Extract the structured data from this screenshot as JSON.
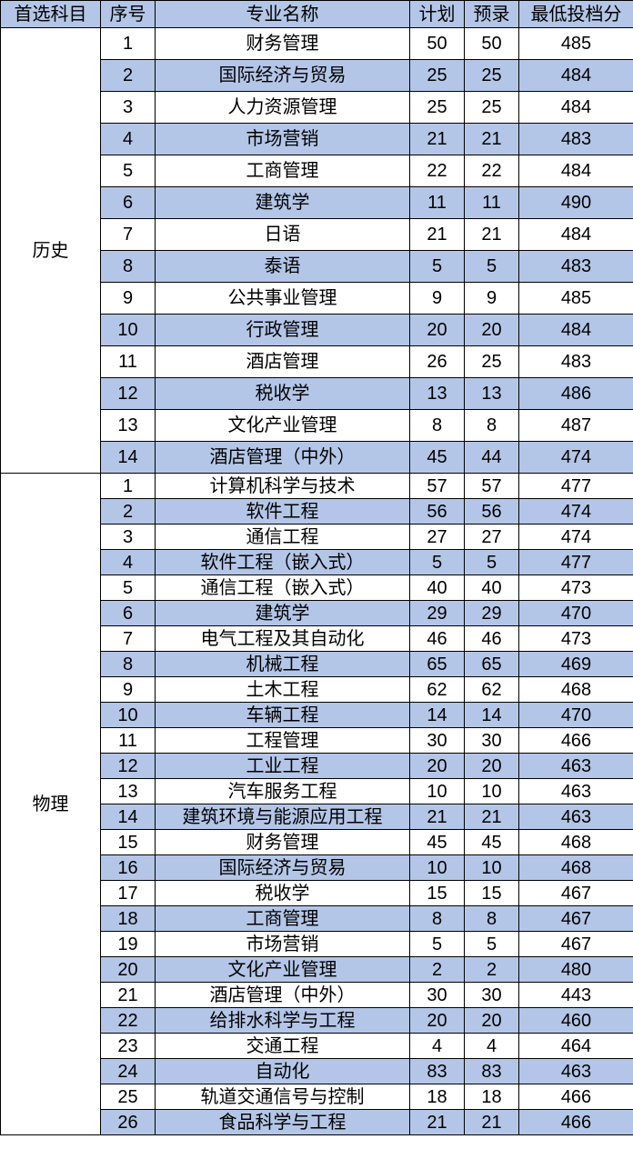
{
  "colors": {
    "header_bg": "#b4c6e7",
    "stripe_bg": "#b4c6e7",
    "row_bg": "#ffffff",
    "border": "#000000",
    "text": "#000000"
  },
  "columns": [
    "首选科目",
    "序号",
    "专业名称",
    "计划",
    "预录",
    "最低投档分"
  ],
  "groups": [
    {
      "subject": "历史",
      "row_class": "h-tall",
      "rows": [
        {
          "seq": "1",
          "major": "财务管理",
          "plan": "50",
          "pre": "50",
          "min": "485"
        },
        {
          "seq": "2",
          "major": "国际经济与贸易",
          "plan": "25",
          "pre": "25",
          "min": "484"
        },
        {
          "seq": "3",
          "major": "人力资源管理",
          "plan": "25",
          "pre": "25",
          "min": "484"
        },
        {
          "seq": "4",
          "major": "市场营销",
          "plan": "21",
          "pre": "21",
          "min": "483"
        },
        {
          "seq": "5",
          "major": "工商管理",
          "plan": "22",
          "pre": "22",
          "min": "484"
        },
        {
          "seq": "6",
          "major": "建筑学",
          "plan": "11",
          "pre": "11",
          "min": "490"
        },
        {
          "seq": "7",
          "major": "日语",
          "plan": "21",
          "pre": "21",
          "min": "484"
        },
        {
          "seq": "8",
          "major": "泰语",
          "plan": "5",
          "pre": "5",
          "min": "483"
        },
        {
          "seq": "9",
          "major": "公共事业管理",
          "plan": "9",
          "pre": "9",
          "min": "485"
        },
        {
          "seq": "10",
          "major": "行政管理",
          "plan": "20",
          "pre": "20",
          "min": "484"
        },
        {
          "seq": "11",
          "major": "酒店管理",
          "plan": "26",
          "pre": "25",
          "min": "483"
        },
        {
          "seq": "12",
          "major": "税收学",
          "plan": "13",
          "pre": "13",
          "min": "486"
        },
        {
          "seq": "13",
          "major": "文化产业管理",
          "plan": "8",
          "pre": "8",
          "min": "487"
        },
        {
          "seq": "14",
          "major": "酒店管理（中外）",
          "plan": "45",
          "pre": "44",
          "min": "474"
        }
      ]
    },
    {
      "subject": "物理",
      "row_class": "h-short",
      "rows": [
        {
          "seq": "1",
          "major": "计算机科学与技术",
          "plan": "57",
          "pre": "57",
          "min": "477"
        },
        {
          "seq": "2",
          "major": "软件工程",
          "plan": "56",
          "pre": "56",
          "min": "474"
        },
        {
          "seq": "3",
          "major": "通信工程",
          "plan": "27",
          "pre": "27",
          "min": "474"
        },
        {
          "seq": "4",
          "major": "软件工程（嵌入式）",
          "plan": "5",
          "pre": "5",
          "min": "477"
        },
        {
          "seq": "5",
          "major": "通信工程（嵌入式）",
          "plan": "40",
          "pre": "40",
          "min": "473"
        },
        {
          "seq": "6",
          "major": "建筑学",
          "plan": "29",
          "pre": "29",
          "min": "470"
        },
        {
          "seq": "7",
          "major": "电气工程及其自动化",
          "plan": "46",
          "pre": "46",
          "min": "473"
        },
        {
          "seq": "8",
          "major": "机械工程",
          "plan": "65",
          "pre": "65",
          "min": "469"
        },
        {
          "seq": "9",
          "major": "土木工程",
          "plan": "62",
          "pre": "62",
          "min": "468"
        },
        {
          "seq": "10",
          "major": "车辆工程",
          "plan": "14",
          "pre": "14",
          "min": "470"
        },
        {
          "seq": "11",
          "major": "工程管理",
          "plan": "30",
          "pre": "30",
          "min": "466"
        },
        {
          "seq": "12",
          "major": "工业工程",
          "plan": "20",
          "pre": "20",
          "min": "463"
        },
        {
          "seq": "13",
          "major": "汽车服务工程",
          "plan": "10",
          "pre": "10",
          "min": "463"
        },
        {
          "seq": "14",
          "major": "建筑环境与能源应用工程",
          "plan": "21",
          "pre": "21",
          "min": "463"
        },
        {
          "seq": "15",
          "major": "财务管理",
          "plan": "45",
          "pre": "45",
          "min": "468"
        },
        {
          "seq": "16",
          "major": "国际经济与贸易",
          "plan": "10",
          "pre": "10",
          "min": "468"
        },
        {
          "seq": "17",
          "major": "税收学",
          "plan": "15",
          "pre": "15",
          "min": "467"
        },
        {
          "seq": "18",
          "major": "工商管理",
          "plan": "8",
          "pre": "8",
          "min": "467"
        },
        {
          "seq": "19",
          "major": "市场营销",
          "plan": "5",
          "pre": "5",
          "min": "467"
        },
        {
          "seq": "20",
          "major": "文化产业管理",
          "plan": "2",
          "pre": "2",
          "min": "480"
        },
        {
          "seq": "21",
          "major": "酒店管理（中外）",
          "plan": "30",
          "pre": "30",
          "min": "443"
        },
        {
          "seq": "22",
          "major": "给排水科学与工程",
          "plan": "20",
          "pre": "20",
          "min": "460"
        },
        {
          "seq": "23",
          "major": "交通工程",
          "plan": "4",
          "pre": "4",
          "min": "464"
        },
        {
          "seq": "24",
          "major": "自动化",
          "plan": "83",
          "pre": "83",
          "min": "463"
        },
        {
          "seq": "25",
          "major": "轨道交通信号与控制",
          "plan": "18",
          "pre": "18",
          "min": "466"
        },
        {
          "seq": "26",
          "major": "食品科学与工程",
          "plan": "21",
          "pre": "21",
          "min": "466"
        }
      ]
    }
  ]
}
